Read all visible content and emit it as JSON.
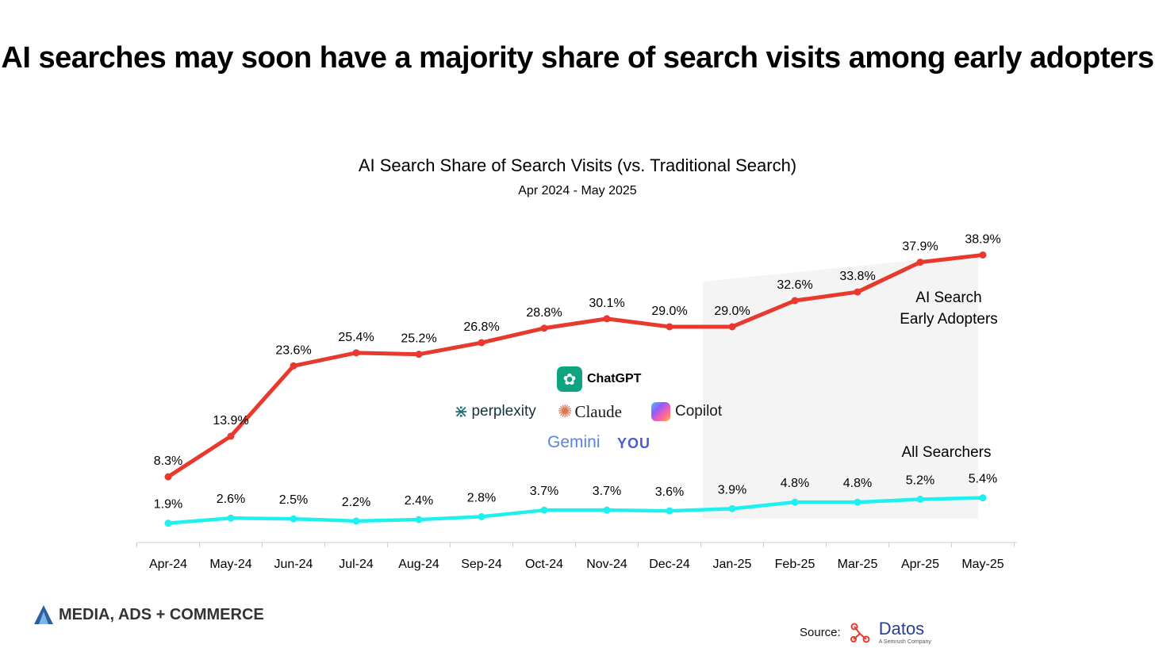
{
  "headline": "AI searches may soon have a majority share of search visits among early adopters",
  "chart_data": {
    "type": "line",
    "title": "AI Search Share of Search Visits (vs. Traditional Search)",
    "subtitle": "Apr 2024 - May 2025",
    "categories": [
      "Apr-24",
      "May-24",
      "Jun-24",
      "Jul-24",
      "Aug-24",
      "Sep-24",
      "Oct-24",
      "Nov-24",
      "Dec-24",
      "Jan-25",
      "Feb-25",
      "Mar-25",
      "Apr-25",
      "May-25"
    ],
    "series": [
      {
        "name": "AI Search Early Adopters",
        "color": "#e8392e",
        "values": [
          8.3,
          13.9,
          23.6,
          25.4,
          25.2,
          26.8,
          28.8,
          30.1,
          29.0,
          29.0,
          32.6,
          33.8,
          37.9,
          38.9
        ],
        "labels": [
          "8.3%",
          "13.9%",
          "23.6%",
          "25.4%",
          "25.2%",
          "26.8%",
          "28.8%",
          "30.1%",
          "29.0%",
          "29.0%",
          "32.6%",
          "33.8%",
          "37.9%",
          "38.9%"
        ]
      },
      {
        "name": "All Searchers",
        "color": "#1ef0f0",
        "values": [
          1.9,
          2.6,
          2.5,
          2.2,
          2.4,
          2.8,
          3.7,
          3.7,
          3.6,
          3.9,
          4.8,
          4.8,
          5.2,
          5.4
        ],
        "labels": [
          "1.9%",
          "2.6%",
          "2.5%",
          "2.2%",
          "2.4%",
          "2.8%",
          "3.7%",
          "3.7%",
          "3.6%",
          "3.9%",
          "4.8%",
          "4.8%",
          "5.2%",
          "5.4%"
        ]
      }
    ],
    "series_label_lines": [
      [
        "AI Search",
        "Early Adopters"
      ],
      [
        "All Searchers"
      ]
    ],
    "shaded_range": [
      "Jan-25",
      "May-25"
    ],
    "grid": false,
    "legend": "inline-right"
  },
  "logos": {
    "chatgpt": "ChatGPT",
    "perplexity": "perplexity",
    "claude": "Claude",
    "copilot": "Copilot",
    "gemini": "Gemini",
    "you": "YOU"
  },
  "footer": {
    "brand": "MEDIA, ADS + COMMERCE",
    "source_label": "Source:",
    "source_name": "Datos",
    "source_sub": "A Semrush Company"
  }
}
